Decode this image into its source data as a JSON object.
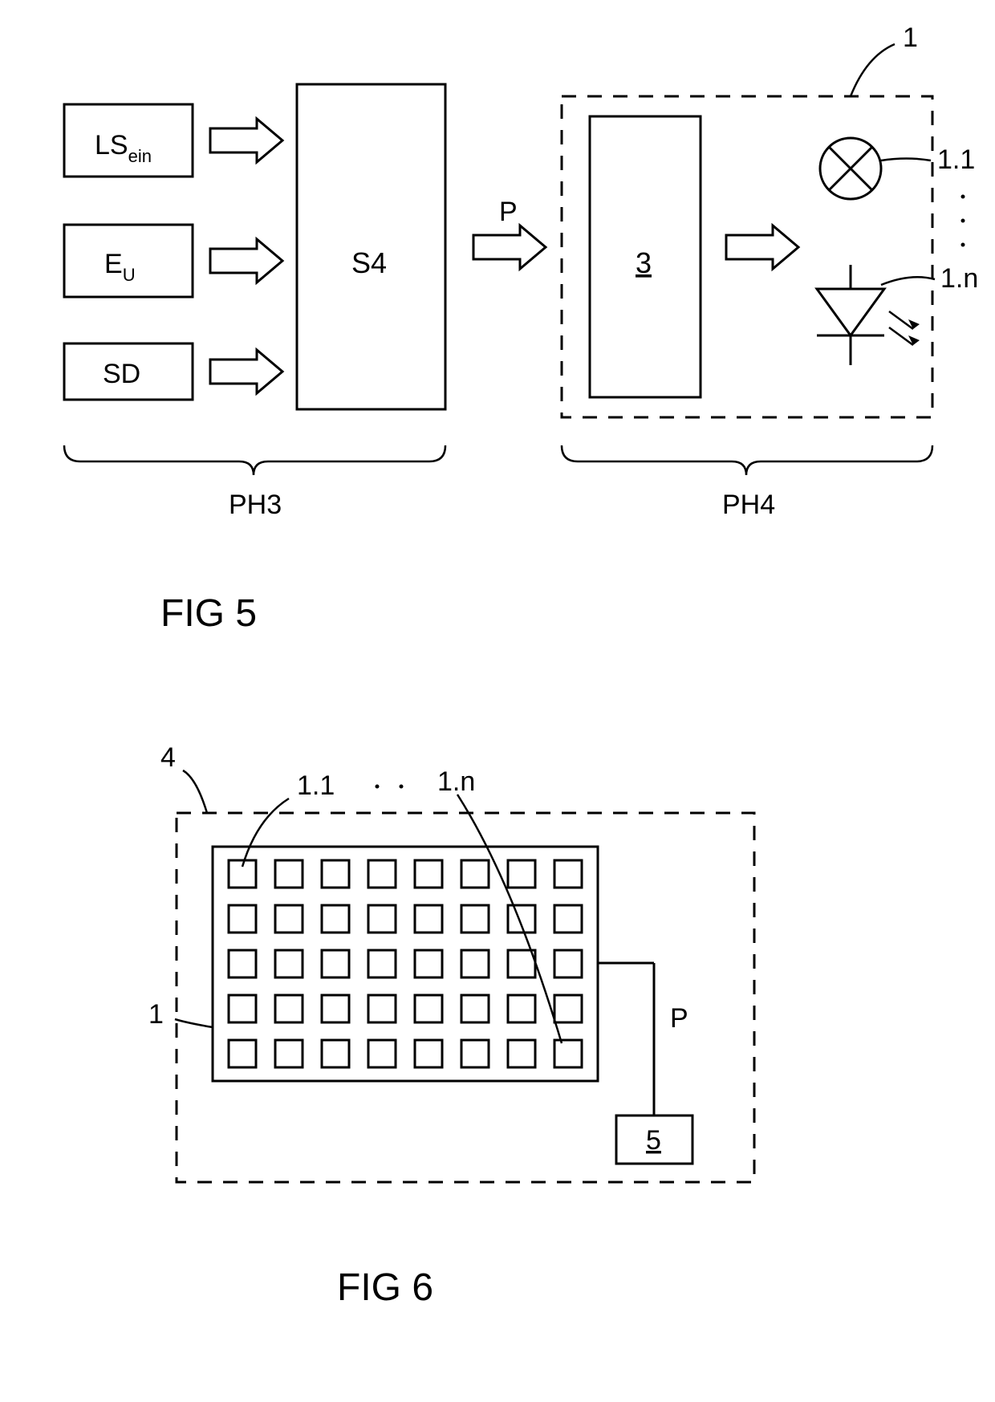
{
  "fig5": {
    "title": "FIG 5",
    "inputs": {
      "a": {
        "label": "LS",
        "sub": "ein"
      },
      "b": {
        "label": "E",
        "sub": "U"
      },
      "c": {
        "label": "SD"
      }
    },
    "block_s4": "S4",
    "signal_p": "P",
    "block_3": "3",
    "group_ph3": "PH3",
    "group_ph4": "PH4",
    "container_1": "1",
    "out_top": "1.1",
    "out_bot": "1.n"
  },
  "fig6": {
    "title": "FIG 6",
    "container_4": "4",
    "matrix_1": "1",
    "cell_first": "1.1",
    "cell_last": "1.n",
    "signal_p": "P",
    "block_5": "5",
    "grid": {
      "rows": 5,
      "cols": 8
    }
  },
  "style": {
    "stroke": "#000000",
    "bg": "#ffffff",
    "stroke_width": 3,
    "font_main": 34,
    "font_title": 44,
    "font_sub": 22
  }
}
